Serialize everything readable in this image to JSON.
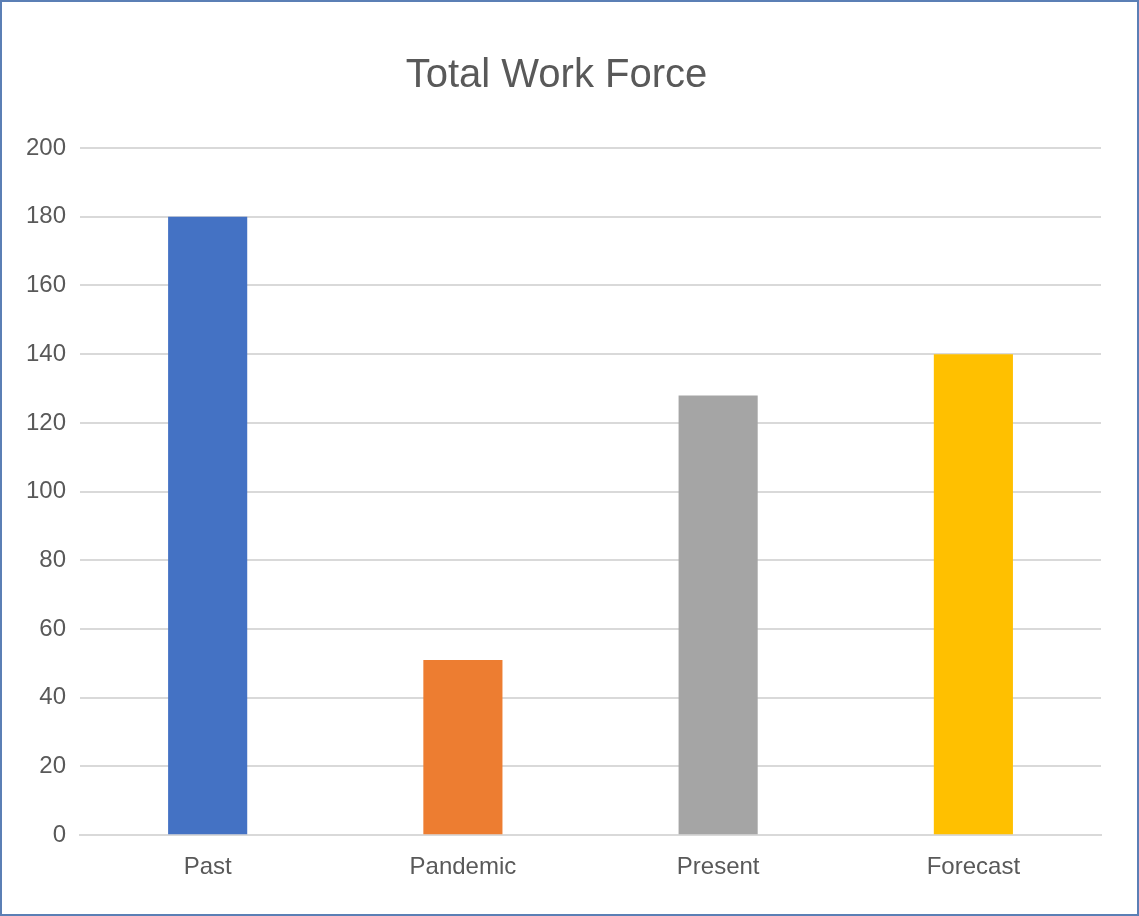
{
  "chart_data": {
    "type": "bar",
    "title": "Total Work Force",
    "categories": [
      "Past",
      "Pandemic",
      "Present",
      "Forecast"
    ],
    "values": [
      180,
      51,
      128,
      140
    ],
    "colors": [
      "#4472c4",
      "#ed7d31",
      "#a5a5a5",
      "#ffc000"
    ],
    "ylim": [
      0,
      200
    ],
    "yticks": [
      0,
      20,
      40,
      60,
      80,
      100,
      120,
      140,
      160,
      180,
      200
    ],
    "grid": "y",
    "legend": false
  }
}
